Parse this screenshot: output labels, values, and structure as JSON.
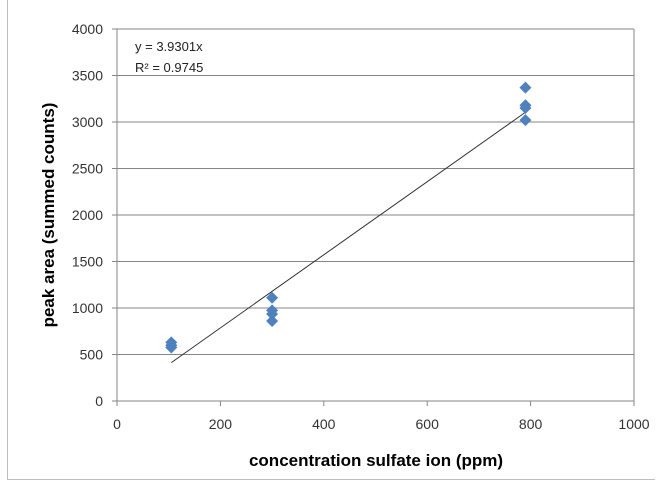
{
  "chart_data": {
    "type": "scatter",
    "xlabel": "concentration sulfate ion (ppm)",
    "ylabel": "peak area (summed counts)",
    "xlim": [
      0,
      1000
    ],
    "ylim": [
      0,
      4000
    ],
    "x_ticks": [
      0,
      200,
      400,
      600,
      800,
      1000
    ],
    "y_ticks": [
      0,
      500,
      1000,
      1500,
      2000,
      2500,
      3000,
      3500,
      4000
    ],
    "x_tick_labels": [
      "0",
      "200",
      "400",
      "600",
      "800",
      "1000"
    ],
    "y_tick_labels": [
      "0",
      "500",
      "1000",
      "1500",
      "2000",
      "2500",
      "3000",
      "3500",
      "4000"
    ],
    "grid": "horizontal",
    "marker_color": "#4f81bd",
    "trendline_color": "#333333",
    "series": [
      {
        "points": [
          {
            "x": 105,
            "y": 630
          },
          {
            "x": 105,
            "y": 600
          },
          {
            "x": 105,
            "y": 575
          },
          {
            "x": 300,
            "y": 1110
          },
          {
            "x": 300,
            "y": 975
          },
          {
            "x": 300,
            "y": 935
          },
          {
            "x": 300,
            "y": 860
          },
          {
            "x": 790,
            "y": 3370
          },
          {
            "x": 790,
            "y": 3180
          },
          {
            "x": 790,
            "y": 3150
          },
          {
            "x": 790,
            "y": 3020
          }
        ]
      }
    ],
    "trendline": {
      "slope": 3.9301,
      "x_range": [
        105,
        790
      ],
      "equation_label": "y = 3.9301x",
      "r_squared_label": "R² = 0.9745"
    }
  }
}
